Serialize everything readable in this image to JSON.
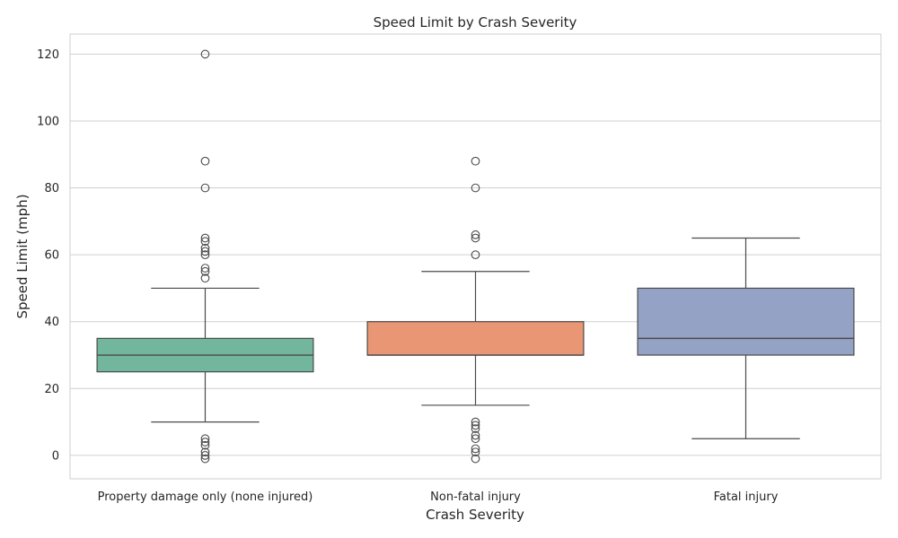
{
  "chart_data": {
    "type": "box",
    "title": "Speed Limit by Crash Severity",
    "xlabel": "Crash Severity",
    "ylabel": "Speed Limit (mph)",
    "ylim": [
      -7,
      126
    ],
    "yticks": [
      0,
      20,
      40,
      60,
      80,
      100,
      120
    ],
    "grid": true,
    "categories": [
      "Property damage only (none injured)",
      "Non-fatal injury",
      "Fatal injury"
    ],
    "series": [
      {
        "category": "Property damage only (none injured)",
        "whisker_low": 10,
        "q1": 25,
        "median": 30,
        "q3": 35,
        "whisker_high": 50,
        "outliers": [
          53,
          55,
          56,
          60,
          61,
          62,
          64,
          65,
          80,
          88,
          120,
          5,
          4,
          3,
          1,
          0,
          -1
        ],
        "color": "#72b79d"
      },
      {
        "category": "Non-fatal injury",
        "whisker_low": 15,
        "q1": 30,
        "median": 30,
        "q3": 40,
        "whisker_high": 55,
        "outliers": [
          60,
          65,
          66,
          80,
          88,
          10,
          9,
          8,
          6,
          5,
          2,
          1,
          -1
        ],
        "color": "#e99675"
      },
      {
        "category": "Fatal injury",
        "whisker_low": 5,
        "q1": 30,
        "median": 35,
        "q3": 50,
        "whisker_high": 65,
        "outliers": [],
        "color": "#94a3c5"
      }
    ]
  }
}
